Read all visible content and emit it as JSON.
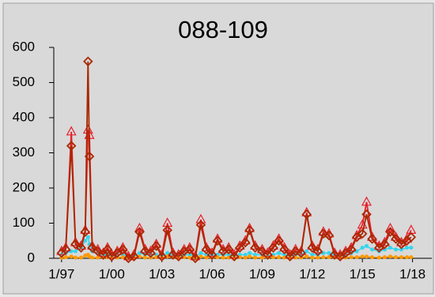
{
  "chart_data": {
    "type": "line",
    "title": "088-109",
    "x": [
      "1997-01",
      "1997-04",
      "1997-08",
      "1997-11",
      "1998-03",
      "1998-06",
      "1998-08",
      "1998-09",
      "1998-11",
      "1999-03",
      "1999-07",
      "1999-10",
      "2000-01",
      "2000-05",
      "2000-09",
      "2001-01",
      "2001-05",
      "2001-09",
      "2002-01",
      "2002-05",
      "2002-09",
      "2003-01",
      "2003-05",
      "2003-09",
      "2004-01",
      "2004-05",
      "2004-09",
      "2005-01",
      "2005-05",
      "2005-09",
      "2006-01",
      "2006-05",
      "2006-09",
      "2007-01",
      "2007-05",
      "2007-09",
      "2008-01",
      "2008-04",
      "2008-08",
      "2009-01",
      "2009-05",
      "2009-09",
      "2010-01",
      "2010-05",
      "2010-09",
      "2011-01",
      "2011-05",
      "2011-09",
      "2012-01",
      "2012-05",
      "2012-09",
      "2013-01",
      "2013-05",
      "2013-09",
      "2014-01",
      "2014-05",
      "2014-09",
      "2015-01",
      "2015-04",
      "2015-08",
      "2016-01",
      "2016-05",
      "2016-09",
      "2017-01",
      "2017-05",
      "2017-09",
      "2017-12"
    ],
    "series": [
      {
        "color": "#33d6ee",
        "marker": "circle",
        "values": [
          10,
          15,
          20,
          20,
          30,
          50,
          60,
          40,
          20,
          15,
          10,
          10,
          5,
          10,
          10,
          5,
          5,
          15,
          10,
          10,
          10,
          5,
          15,
          10,
          5,
          10,
          10,
          5,
          15,
          10,
          10,
          10,
          10,
          10,
          5,
          10,
          10,
          15,
          10,
          10,
          5,
          10,
          15,
          10,
          5,
          10,
          10,
          20,
          10,
          10,
          15,
          15,
          10,
          5,
          10,
          15,
          20,
          30,
          35,
          25,
          20,
          25,
          30,
          25,
          25,
          30,
          30
        ]
      },
      {
        "color": "#ff9900",
        "marker": "circle",
        "values": [
          2,
          3,
          5,
          2,
          2,
          8,
          10,
          5,
          2,
          2,
          2,
          3,
          2,
          2,
          3,
          2,
          2,
          5,
          2,
          2,
          3,
          2,
          5,
          2,
          2,
          3,
          2,
          2,
          5,
          2,
          2,
          3,
          2,
          2,
          2,
          3,
          2,
          5,
          2,
          2,
          2,
          3,
          3,
          2,
          2,
          2,
          2,
          5,
          2,
          2,
          3,
          3,
          2,
          2,
          2,
          3,
          3,
          5,
          5,
          3,
          2,
          3,
          5,
          3,
          3,
          3,
          3
        ]
      },
      {
        "color": "#e8202a",
        "marker": "triangle",
        "values": [
          20,
          30,
          360,
          45,
          35,
          80,
          365,
          350,
          35,
          25,
          15,
          30,
          10,
          20,
          30,
          5,
          10,
          85,
          25,
          20,
          40,
          10,
          100,
          15,
          10,
          25,
          30,
          5,
          110,
          30,
          15,
          55,
          25,
          30,
          10,
          35,
          50,
          85,
          35,
          25,
          15,
          35,
          55,
          30,
          10,
          25,
          20,
          130,
          35,
          25,
          75,
          70,
          15,
          10,
          20,
          30,
          65,
          95,
          160,
          60,
          35,
          45,
          85,
          60,
          45,
          55,
          80
        ]
      },
      {
        "color": "#a82800",
        "marker": "diamond",
        "values": [
          15,
          25,
          320,
          40,
          30,
          75,
          560,
          290,
          30,
          20,
          10,
          25,
          5,
          15,
          25,
          0,
          5,
          75,
          20,
          15,
          35,
          5,
          80,
          10,
          5,
          20,
          25,
          0,
          95,
          25,
          10,
          50,
          20,
          25,
          5,
          30,
          45,
          80,
          30,
          20,
          10,
          30,
          50,
          25,
          5,
          20,
          15,
          125,
          30,
          20,
          70,
          65,
          10,
          5,
          15,
          25,
          60,
          70,
          125,
          55,
          30,
          40,
          75,
          55,
          40,
          50,
          60
        ]
      }
    ],
    "xlim": [
      "1996-04",
      "2019-04"
    ],
    "xticks": [
      {
        "value": "1997-01",
        "label": "1/97"
      },
      {
        "value": "2000-01",
        "label": "1/00"
      },
      {
        "value": "2003-01",
        "label": "1/03"
      },
      {
        "value": "2006-01",
        "label": "1/06"
      },
      {
        "value": "2009-01",
        "label": "1/09"
      },
      {
        "value": "2012-01",
        "label": "1/12"
      },
      {
        "value": "2015-01",
        "label": "1/15"
      },
      {
        "value": "2018-01",
        "label": "1/18"
      }
    ],
    "ylim": [
      0,
      600
    ],
    "yticks": [
      0,
      100,
      200,
      300,
      400,
      500,
      600
    ]
  }
}
